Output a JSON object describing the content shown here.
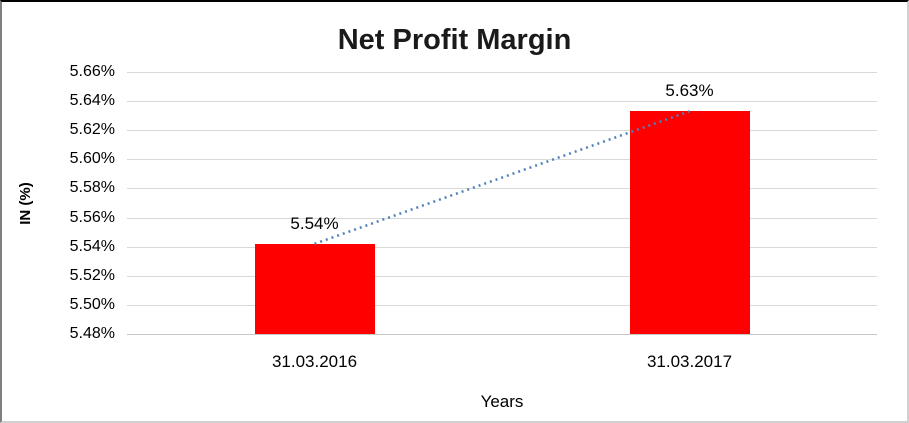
{
  "window": {
    "background": "#ffffff",
    "border_top_color": "#000000"
  },
  "chart_data": {
    "type": "bar",
    "title": "Net Profit Margin",
    "categories": [
      "31.03.2016",
      "31.03.2017"
    ],
    "values": [
      5.542,
      5.633
    ],
    "data_labels": [
      "5.54%",
      "5.63%"
    ],
    "xlabel": "Years",
    "ylabel": "IN (%)",
    "ylim": [
      5.48,
      5.66
    ],
    "ytick_step": 0.02,
    "ytick_labels_top_to_bottom": [
      "5.66%",
      "5.64%",
      "5.62%",
      "5.60%",
      "5.58%",
      "5.56%",
      "5.54%",
      "5.52%",
      "5.50%",
      "5.48%"
    ],
    "grid": true,
    "legend": "none",
    "bar_color": "#ff0000",
    "gridline_color": "#d9d9d9",
    "trendline": {
      "style": "dotted",
      "color": "#4f81bd",
      "connects": [
        "31.03.2016",
        "31.03.2017"
      ]
    }
  }
}
